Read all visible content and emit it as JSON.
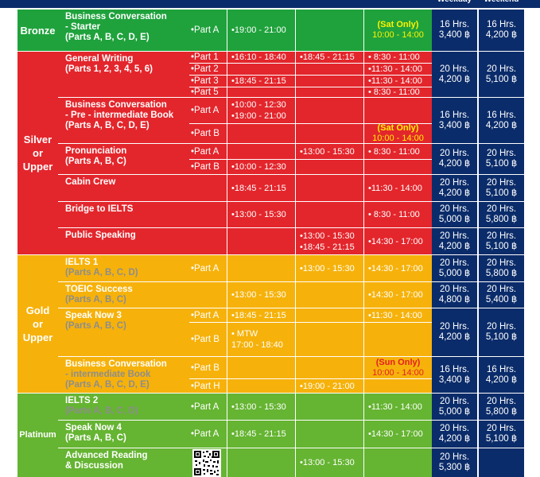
{
  "header": {
    "weekday": "Weekday",
    "weekend": "Weekend"
  },
  "levels": {
    "bronze": "Bronze",
    "silver": "Silver\nor\nUpper",
    "gold": "Gold\nor\nUpper",
    "platinum": "Platinum"
  },
  "courses": [
    {
      "title": "Business Conversation",
      "sub": [
        "- Starter",
        "(Parts A, B, C, D, E)"
      ]
    },
    {
      "title": "General Writing",
      "sub": [
        "(Parts 1, 2, 3, 4, 5, 6)"
      ]
    },
    {
      "title": "Business Conversation",
      "sub": [
        "- Pre - intermediate Book",
        "(Parts A, B, C, D, E)"
      ]
    },
    {
      "title": "Pronunciation",
      "sub": [
        "(Parts A, B, C)"
      ]
    },
    {
      "title": "Cabin Crew",
      "sub": []
    },
    {
      "title": "Bridge to IELTS",
      "sub": []
    },
    {
      "title": "Public Speaking",
      "sub": []
    },
    {
      "title": "IELTS 1",
      "sub": [
        "(Parts A, B, C, D)"
      ]
    },
    {
      "title": "TOEIC Success",
      "sub": [
        "(Parts A, B, C)"
      ]
    },
    {
      "title": "Speak Now 3",
      "sub": [
        "(Parts A, B, C)"
      ]
    },
    {
      "title": "Business Conversation",
      "sub": [
        "- intermediate Book",
        "(Parts A, B, C, D, E)"
      ]
    },
    {
      "title": "IELTS 2",
      "sub": [
        "(Parts A, B, C, D)"
      ]
    },
    {
      "title": "Speak Now 4",
      "sub": [
        "(Parts A, B, C)"
      ]
    },
    {
      "title": "Advanced Reading",
      "sub": [
        "& Discussion"
      ]
    }
  ],
  "parts": {
    "bz_a": "•Part A",
    "gw1": "•Part 1",
    "gw2": "•Part 2",
    "gw3": "•Part 3",
    "gw5": "•Part 5",
    "bpa": "•Part A",
    "bpb": "•Part B",
    "pra": "•Part A",
    "prb": "•Part B",
    "i1a": "•Part A",
    "sn3a": "•Part A",
    "sn3b": "•Part B",
    "bib": "•Part B",
    "bih": "•Part H",
    "i2a": "•Part A",
    "sn4a": "•Part A"
  },
  "times": {
    "bz_1": "•19:00 - 21:00",
    "gw1_1": "•16:10 - 18:40",
    "gw1_2": "•18:45 - 21:15",
    "gw1_3": "• 8:30 - 11:00",
    "gw2_3": "•11:30 - 14:00",
    "gw3_1": "•18:45 - 21:15",
    "gw3_3": "•11:30 - 14:00",
    "gw5_3": "• 8:30 - 11:00",
    "bpa_1a": "•10:00 - 12:30",
    "bpa_1b": "•19:00 - 21:00",
    "pra_2": "•13:00 - 15:30",
    "pra_3": "• 8:30 - 11:00",
    "prb_1": "•10:00 - 12:30",
    "cc_1": "•18:45 - 21:15",
    "cc_3": "•11:30 - 14:00",
    "bi_1": "•13:00 - 15:30",
    "bi_3": "• 8:30 - 11:00",
    "ps_2a": "•13:00 - 15:30",
    "ps_2b": "•18:45 - 21:15",
    "ps_3": "•14:30 - 17:00",
    "i1_2": "•13:00 - 15:30",
    "i1_3": "•14:30 - 17:00",
    "ts_1": "•13:00 - 15:30",
    "ts_3": "•14:30 - 17:00",
    "sn3a_1": "•18:45 - 21:15",
    "sn3a_3": "•11:30 - 14:00",
    "sn3b_1a": "• MTW",
    "sn3b_1b": "17:00 - 18:40",
    "bih_2": "•19:00 - 21:00",
    "i2_1": "•13:00 - 15:30",
    "i2_3": "•11:30 - 14:00",
    "sn4_1": "•18:45 - 21:15",
    "sn4_3": "•14:30 - 17:00",
    "ar_2": "•13:00 - 15:30"
  },
  "notes": {
    "bz_label": "(Sat Only)",
    "bz_time": "10:00 - 14:00",
    "bp_label": "(Sat Only)",
    "bp_time": "10:00 - 14:00",
    "bi_label": "(Sun Only)",
    "bi_time": "10:00 - 14:00"
  },
  "prices": [
    {
      "wd": [
        "16 Hrs.",
        "3,400 ฿"
      ],
      "we": [
        "16 Hrs.",
        "4,200 ฿"
      ]
    },
    {
      "wd": [
        "20 Hrs.",
        "4,200 ฿"
      ],
      "we": [
        "20 Hrs.",
        "5,100 ฿"
      ]
    },
    {
      "wd": [
        "16 Hrs.",
        "3,400 ฿"
      ],
      "we": [
        "16 Hrs.",
        "4,200 ฿"
      ]
    },
    {
      "wd": [
        "20 Hrs.",
        "4,200 ฿"
      ],
      "we": [
        "20 Hrs.",
        "5,100 ฿"
      ]
    },
    {
      "wd": [
        "20 Hrs.",
        "4,200 ฿"
      ],
      "we": [
        "20 Hrs.",
        "5,100 ฿"
      ]
    },
    {
      "wd": [
        "20 Hrs.",
        "5,000 ฿"
      ],
      "we": [
        "20 Hrs.",
        "5,800 ฿"
      ]
    },
    {
      "wd": [
        "20 Hrs.",
        "4,200 ฿"
      ],
      "we": [
        "20 Hrs.",
        "5,100 ฿"
      ]
    },
    {
      "wd": [
        "20 Hrs.",
        "5,000 ฿"
      ],
      "we": [
        "20 Hrs.",
        "5,800 ฿"
      ]
    },
    {
      "wd": [
        "20 Hrs.",
        "4,800 ฿"
      ],
      "we": [
        "20 Hrs.",
        "5,400 ฿"
      ]
    },
    {
      "wd": [
        "20 Hrs.",
        "4,200 ฿"
      ],
      "we": [
        "20 Hrs.",
        "5,100 ฿"
      ]
    },
    {
      "wd": [
        "16 Hrs.",
        "3,400 ฿"
      ],
      "we": [
        "16 Hrs.",
        "4,200 ฿"
      ]
    },
    {
      "wd": [
        "20 Hrs.",
        "5,000 ฿"
      ],
      "we": [
        "20 Hrs.",
        "5,800 ฿"
      ]
    },
    {
      "wd": [
        "20 Hrs.",
        "4,200 ฿"
      ],
      "we": [
        "20 Hrs.",
        "5,100 ฿"
      ]
    },
    {
      "wd": [
        "20 Hrs.",
        "5,300 ฿"
      ],
      "we": []
    }
  ],
  "colors": {
    "header_navy": "#0b2c6a",
    "bronze": "#1fa23c",
    "silver": "#e3262c",
    "gold": "#f6b20b",
    "platinum": "#65b432",
    "note_yellow": "#fff200",
    "note_red": "#e31e24"
  }
}
